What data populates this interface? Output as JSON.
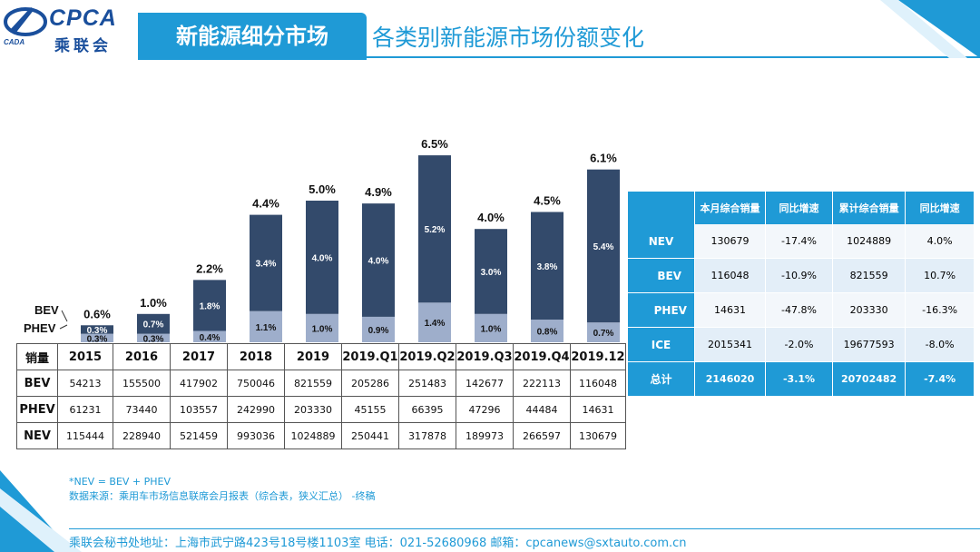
{
  "header": {
    "logo_text": "CPCA",
    "logo_subtext": "CADA",
    "logo_cn": "乘联会",
    "title": "新能源细分市场",
    "subtitle": "各类别新能源市场份额变化"
  },
  "colors": {
    "accent": "#1f9ad6",
    "bev_bar": "#334a6b",
    "phev_bar": "#9eaecb"
  },
  "chart_data": {
    "type": "bar",
    "stacked": true,
    "title": "",
    "categories": [
      "2015",
      "2016",
      "2017",
      "2018",
      "2019",
      "2019.Q1",
      "2019.Q2",
      "2019.Q3",
      "2019.Q4",
      "2019.12"
    ],
    "series": [
      {
        "name": "PHEV",
        "values": [
          0.3,
          0.3,
          0.4,
          1.1,
          1.0,
          0.9,
          1.4,
          1.0,
          0.8,
          0.7
        ],
        "labels": [
          "0.3%",
          "0.3%",
          "0.4%",
          "1.1%",
          "1.0%",
          "0.9%",
          "1.4%",
          "1.0%",
          "0.8%",
          "0.7%"
        ]
      },
      {
        "name": "BEV",
        "values": [
          0.3,
          0.7,
          1.8,
          3.4,
          4.0,
          4.0,
          5.2,
          3.0,
          3.8,
          5.4
        ],
        "labels": [
          "0.3%",
          "0.7%",
          "1.8%",
          "3.4%",
          "4.0%",
          "4.0%",
          "5.2%",
          "3.0%",
          "3.8%",
          "5.4%"
        ]
      }
    ],
    "totals": [
      0.6,
      1.0,
      2.2,
      4.4,
      5.0,
      4.9,
      6.5,
      4.0,
      4.5,
      6.1
    ],
    "total_labels": [
      "0.6%",
      "1.0%",
      "2.2%",
      "4.4%",
      "5.0%",
      "4.9%",
      "6.5%",
      "4.0%",
      "4.5%",
      "6.1%"
    ],
    "legend": [
      "BEV",
      "PHEV"
    ],
    "ylabel": "",
    "xlabel": "",
    "ylim": [
      0,
      7
    ]
  },
  "data_table": {
    "header_label": "销量",
    "columns": [
      "2015",
      "2016",
      "2017",
      "2018",
      "2019",
      "2019.Q1",
      "2019.Q2",
      "2019.Q3",
      "2019.Q4",
      "2019.12"
    ],
    "rows": [
      {
        "name": "BEV",
        "values": [
          "54213",
          "155500",
          "417902",
          "750046",
          "821559",
          "205286",
          "251483",
          "142677",
          "222113",
          "116048"
        ]
      },
      {
        "name": "PHEV",
        "values": [
          "61231",
          "73440",
          "103557",
          "242990",
          "203330",
          "45155",
          "66395",
          "47296",
          "44484",
          "14631"
        ]
      },
      {
        "name": "NEV",
        "values": [
          "115444",
          "228940",
          "521459",
          "993036",
          "1024889",
          "250441",
          "317878",
          "189973",
          "266597",
          "130679"
        ]
      }
    ]
  },
  "summary_table": {
    "headers": [
      "",
      "本月综合销量",
      "同比增速",
      "累计综合销量",
      "同比增速"
    ],
    "rows": [
      {
        "name": "NEV",
        "values": [
          "130679",
          "-17.4%",
          "1024889",
          "4.0%"
        ]
      },
      {
        "name": "BEV",
        "values": [
          "116048",
          "-10.9%",
          "821559",
          "10.7%"
        ]
      },
      {
        "name": "PHEV",
        "values": [
          "14631",
          "-47.8%",
          "203330",
          "-16.3%"
        ]
      },
      {
        "name": "ICE",
        "values": [
          "2015341",
          "-2.0%",
          "19677593",
          "-8.0%"
        ]
      },
      {
        "name": "总计",
        "values": [
          "2146020",
          "-3.1%",
          "20702482",
          "-7.4%"
        ]
      }
    ]
  },
  "notes": {
    "formula": "*NEV = BEV + PHEV",
    "source": "数据来源：乘用车市场信息联席会月报表（综合表，狭义汇总）  -终稿"
  },
  "footer": "乘联会秘书处地址：上海市武宁路423号18号楼1103室  电话：021-52680968  邮箱：cpcanews@sxtauto.com.cn"
}
